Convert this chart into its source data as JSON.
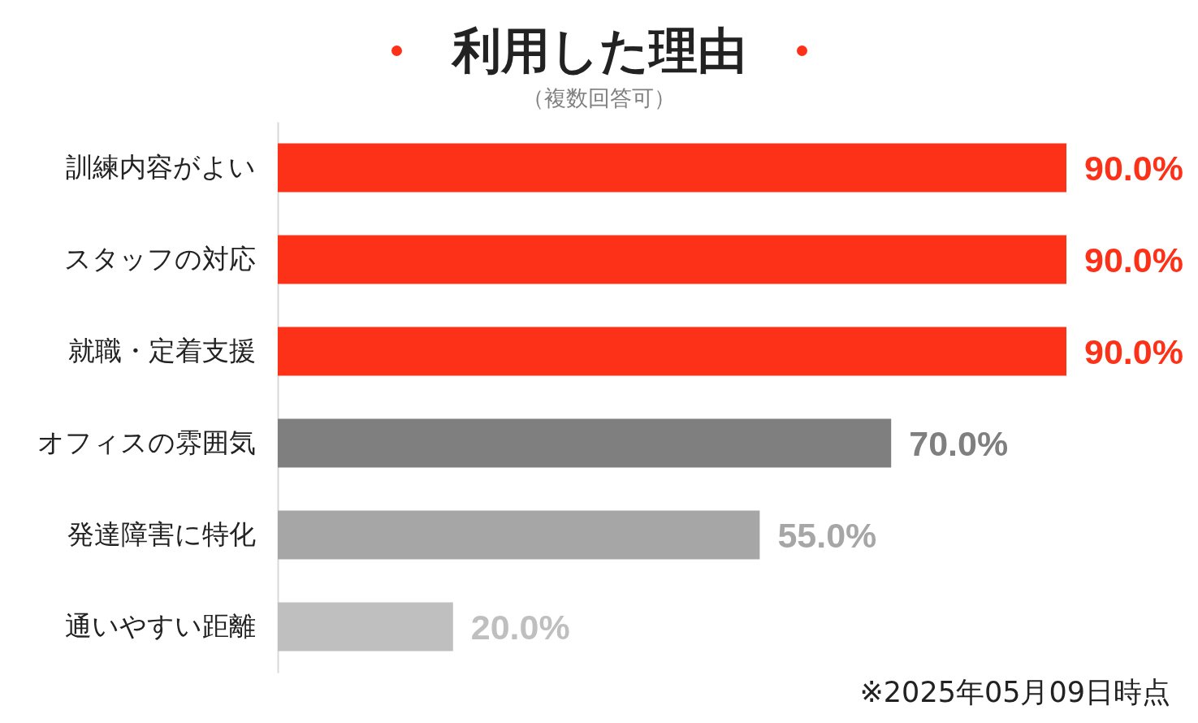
{
  "chart_data": {
    "type": "bar",
    "orientation": "horizontal",
    "title": "利用した理由",
    "subtitle": "（複数回答可）",
    "categories": [
      "訓練内容がよい",
      "スタッフの対応",
      "就職・定着支援",
      "オフィスの雰囲気",
      "発達障害に特化",
      "通いやすい距離"
    ],
    "values": [
      90,
      90,
      90,
      70,
      55,
      20
    ],
    "colors": [
      "#fd3018",
      "#fd3018",
      "#fd3018",
      "#7f7f7f",
      "#a6a6a6",
      "#bfbfbf"
    ],
    "value_labels": [
      "90.0%",
      "90.0%",
      "90.0%",
      "70.0%",
      "55.0%",
      "20.0%"
    ],
    "tick_labels": "y",
    "annotations": [
      "※2025年05月09日時点"
    ]
  }
}
